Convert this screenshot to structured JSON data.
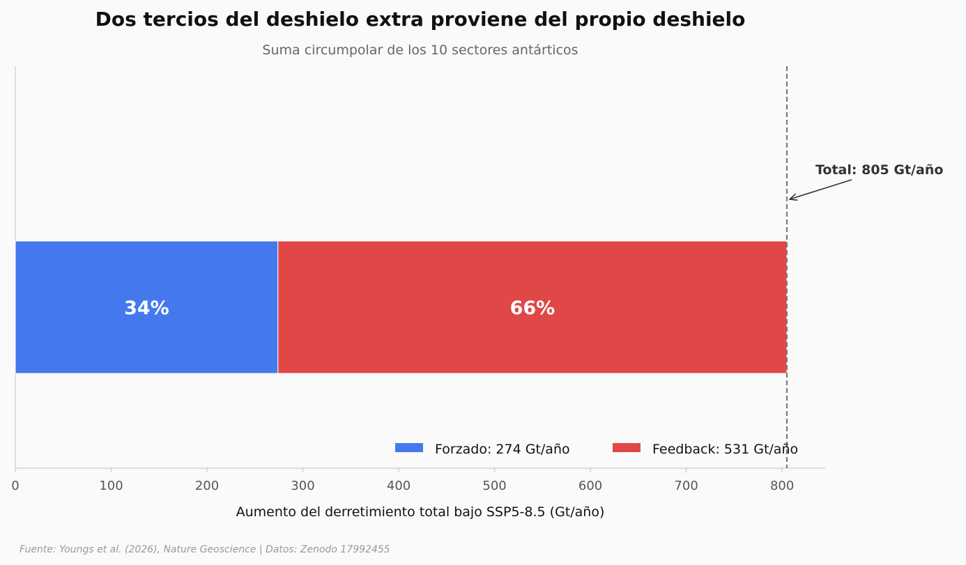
{
  "chart_data": {
    "type": "bar",
    "orientation": "horizontal",
    "stacked": true,
    "title": "Dos tercios del deshielo extra proviene del propio deshielo",
    "subtitle": "Suma circumpolar de los 10 sectores antárticos",
    "xlabel": "Aumento del derretimiento total bajo SSP5-8.5 (Gt/año)",
    "ylabel": "",
    "xlim": [
      0,
      845
    ],
    "xticks": [
      0,
      100,
      200,
      300,
      400,
      500,
      600,
      700,
      800
    ],
    "grid": false,
    "legend_position": "lower-right",
    "series": [
      {
        "name": "Forzado: 274 Gt/año",
        "value": 274,
        "label": "34%",
        "color": "#4479ee"
      },
      {
        "name": "Feedback: 531 Gt/año",
        "value": 531,
        "label": "66%",
        "color": "#e04747"
      }
    ],
    "total_line": {
      "value": 805,
      "color": "#7a7a7a",
      "style": "dashed"
    },
    "annotation": {
      "text": "Total: 805 Gt/año"
    },
    "source": "Fuente: Youngs et al. (2026), Nature Geoscience | Datos: Zenodo 17992455"
  }
}
